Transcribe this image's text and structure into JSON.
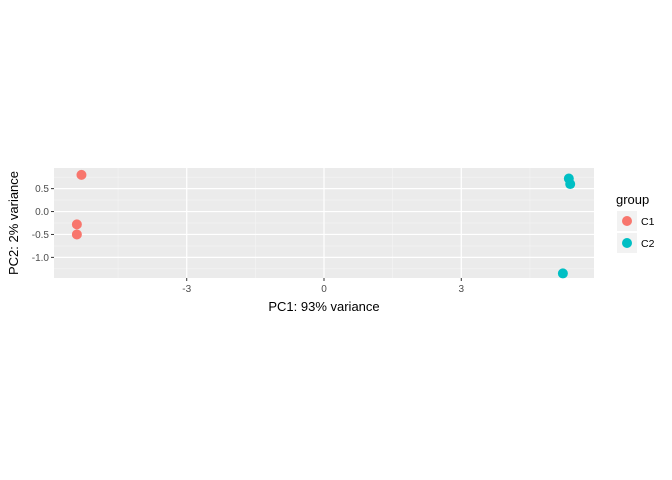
{
  "chart_data": {
    "type": "scatter",
    "xlabel": "PC1: 93% variance",
    "ylabel": "PC2: 2% variance",
    "xlim": [
      -5.9,
      5.9
    ],
    "ylim": [
      -1.45,
      0.95
    ],
    "x_ticks": [
      -3,
      0,
      3
    ],
    "x_tick_labels": [
      "-3",
      "0",
      "3"
    ],
    "y_ticks": [
      -1.0,
      -0.5,
      0.0,
      0.5
    ],
    "y_tick_labels": [
      "-1.0",
      "-0.5",
      "0.0",
      "0.5"
    ],
    "grid": true,
    "legend": {
      "title": "group",
      "position": "right"
    },
    "series": [
      {
        "name": "C1",
        "color": "#F8766D",
        "points": [
          {
            "x": -5.3,
            "y": 0.8
          },
          {
            "x": -5.4,
            "y": -0.28
          },
          {
            "x": -5.4,
            "y": -0.5
          }
        ]
      },
      {
        "name": "C2",
        "color": "#00BFC4",
        "points": [
          {
            "x": 5.35,
            "y": 0.72
          },
          {
            "x": 5.38,
            "y": 0.6
          },
          {
            "x": 5.22,
            "y": -1.35
          }
        ]
      }
    ]
  }
}
